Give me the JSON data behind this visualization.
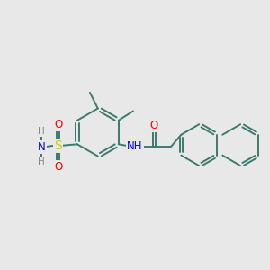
{
  "bg_color": "#e8e8e8",
  "bond_color": "#3d7a6e",
  "bond_width": 1.4,
  "atom_colors": {
    "O": "#ff0000",
    "N": "#0000ff",
    "S": "#cccc00",
    "H": "#888888"
  },
  "font_size_atom": 8.5
}
